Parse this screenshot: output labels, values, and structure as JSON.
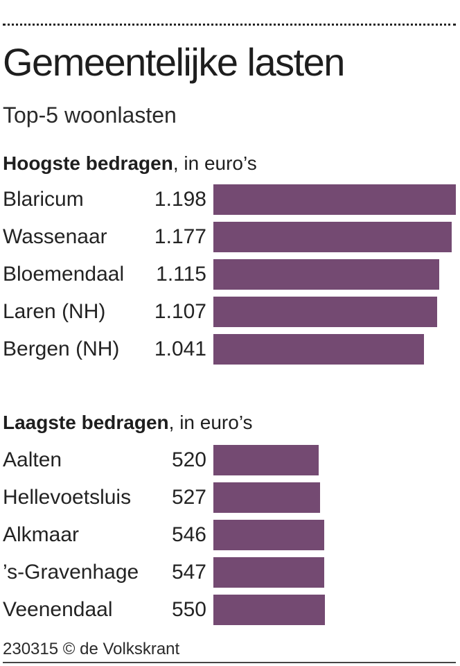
{
  "title": "Gemeentelijke lasten",
  "subtitle": "Top-5 woonlasten",
  "source": "230315 © de Volkskrant",
  "colors": {
    "bar": "#744a72",
    "text": "#1e1e1e"
  },
  "chart_data": [
    {
      "type": "bar",
      "orientation": "horizontal",
      "heading_bold": "Hoogste bedragen",
      "heading_rest": ", in euro’s",
      "categories": [
        "Blaricum",
        "Wassenaar",
        "Bloemendaal",
        "Laren (NH)",
        "Bergen (NH)"
      ],
      "values": [
        1198,
        1177,
        1115,
        1107,
        1041
      ],
      "value_labels": [
        "1.198",
        "1.177",
        "1.115",
        "1.107",
        "1.041"
      ],
      "xlim": [
        0,
        1198
      ]
    },
    {
      "type": "bar",
      "orientation": "horizontal",
      "heading_bold": "Laagste bedragen",
      "heading_rest": ", in euro’s",
      "categories": [
        "Aalten",
        "Hellevoetsluis",
        "Alkmaar",
        "’s-Gravenhage",
        "Veenendaal"
      ],
      "values": [
        520,
        527,
        546,
        547,
        550
      ],
      "value_labels": [
        "520",
        "527",
        "546",
        "547",
        "550"
      ],
      "xlim": [
        0,
        1198
      ]
    }
  ]
}
